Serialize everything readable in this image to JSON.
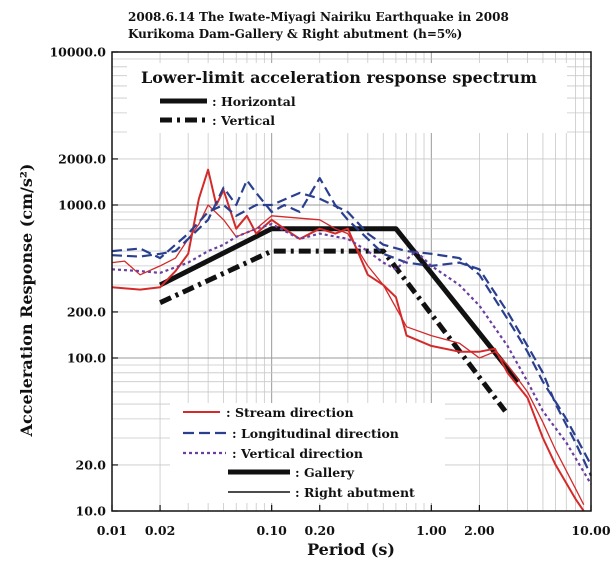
{
  "chart_data": {
    "type": "line",
    "title_line1": "2008.6.14 The Iwate-Miyagi Nairiku Earthquake in 2008",
    "title_line2": "Kurikoma Dam-Gallery & Right abutment (h=5%)",
    "xlabel": "Period (s)",
    "ylabel": "Acceleration Response (cm/s²)",
    "x_scale": "log",
    "y_scale": "log",
    "xlim": [
      0.01,
      10
    ],
    "ylim": [
      10,
      10000
    ],
    "grid": true,
    "x_ticks": [
      {
        "v": 0.01,
        "label": "0.01"
      },
      {
        "v": 0.02,
        "label": "0.02"
      },
      {
        "v": 0.1,
        "label": "0.10"
      },
      {
        "v": 0.2,
        "label": "0.20"
      },
      {
        "v": 1,
        "label": "1.00"
      },
      {
        "v": 2,
        "label": "2.00"
      },
      {
        "v": 10,
        "label": "10.00"
      }
    ],
    "y_ticks": [
      {
        "v": 10,
        "label": "10.0"
      },
      {
        "v": 20,
        "label": "20.0"
      },
      {
        "v": 100,
        "label": "100.0"
      },
      {
        "v": 200,
        "label": "200.0"
      },
      {
        "v": 1000,
        "label": "1000.0"
      },
      {
        "v": 2000,
        "label": "2000.0"
      },
      {
        "v": 10000,
        "label": "10000.0"
      }
    ],
    "legend_top": {
      "heading": "Lower-limit acceleration response spectrum",
      "entries": [
        {
          "label": ": Horizontal",
          "style": "solid-thick"
        },
        {
          "label": ": Vertical",
          "style": "dashed-thick"
        }
      ]
    },
    "legend_bottom": [
      {
        "label": ": Stream direction",
        "color": "#d42a2a",
        "style": "solid"
      },
      {
        "label": ": Longitudinal direction",
        "color": "#2b3f8f",
        "style": "dashed"
      },
      {
        "label": ": Vertical direction",
        "color": "#6b3fa0",
        "style": "dotted"
      },
      {
        "label": ": Gallery",
        "color": "#000000",
        "style": "solid-thick"
      },
      {
        "label": ": Right abutment",
        "color": "#000000",
        "style": "solid-thin"
      }
    ],
    "series": [
      {
        "name": "Horizontal",
        "color": "#111111",
        "style": "solid-thick",
        "points": [
          [
            0.02,
            300
          ],
          [
            0.1,
            700
          ],
          [
            0.6,
            700
          ],
          [
            3.5,
            70
          ]
        ]
      },
      {
        "name": "Vertical",
        "color": "#111111",
        "style": "dashed-thick",
        "points": [
          [
            0.02,
            230
          ],
          [
            0.1,
            500
          ],
          [
            0.5,
            500
          ],
          [
            2.9,
            45
          ]
        ]
      },
      {
        "name": "Stream direction",
        "color": "#d42a2a",
        "style": "solid",
        "points": [
          [
            0.01,
            290
          ],
          [
            0.015,
            280
          ],
          [
            0.02,
            290
          ],
          [
            0.025,
            370
          ],
          [
            0.03,
            480
          ],
          [
            0.035,
            1100
          ],
          [
            0.04,
            1700
          ],
          [
            0.045,
            1000
          ],
          [
            0.05,
            1250
          ],
          [
            0.06,
            700
          ],
          [
            0.07,
            850
          ],
          [
            0.08,
            650
          ],
          [
            0.1,
            800
          ],
          [
            0.12,
            700
          ],
          [
            0.15,
            600
          ],
          [
            0.2,
            700
          ],
          [
            0.25,
            650
          ],
          [
            0.3,
            700
          ],
          [
            0.4,
            350
          ],
          [
            0.5,
            300
          ],
          [
            0.6,
            250
          ],
          [
            0.7,
            140
          ],
          [
            1,
            120
          ],
          [
            1.5,
            110
          ],
          [
            2,
            110
          ],
          [
            2.5,
            115
          ],
          [
            3,
            80
          ],
          [
            4,
            55
          ],
          [
            5,
            30
          ],
          [
            6,
            20
          ],
          [
            8,
            12
          ],
          [
            9,
            10
          ]
        ]
      },
      {
        "name": "Stream direction (Right abutment)",
        "color": "#d42a2a",
        "style": "solid-thin",
        "points": [
          [
            0.01,
            420
          ],
          [
            0.012,
            430
          ],
          [
            0.015,
            350
          ],
          [
            0.02,
            400
          ],
          [
            0.025,
            450
          ],
          [
            0.03,
            600
          ],
          [
            0.035,
            750
          ],
          [
            0.04,
            1000
          ],
          [
            0.05,
            800
          ],
          [
            0.06,
            620
          ],
          [
            0.08,
            700
          ],
          [
            0.1,
            850
          ],
          [
            0.15,
            820
          ],
          [
            0.2,
            800
          ],
          [
            0.25,
            700
          ],
          [
            0.3,
            650
          ],
          [
            0.4,
            400
          ],
          [
            0.5,
            300
          ],
          [
            0.7,
            160
          ],
          [
            1,
            140
          ],
          [
            1.5,
            125
          ],
          [
            2,
            100
          ],
          [
            2.5,
            110
          ],
          [
            3,
            90
          ],
          [
            4,
            60
          ],
          [
            5,
            38
          ],
          [
            6,
            25
          ],
          [
            8,
            14
          ],
          [
            9,
            11
          ]
        ]
      },
      {
        "name": "Longitudinal direction",
        "color": "#2b3f8f",
        "style": "dashed",
        "points": [
          [
            0.01,
            470
          ],
          [
            0.015,
            460
          ],
          [
            0.02,
            480
          ],
          [
            0.025,
            500
          ],
          [
            0.03,
            600
          ],
          [
            0.04,
            800
          ],
          [
            0.05,
            1300
          ],
          [
            0.06,
            1000
          ],
          [
            0.07,
            1450
          ],
          [
            0.08,
            1200
          ],
          [
            0.1,
            900
          ],
          [
            0.12,
            1000
          ],
          [
            0.15,
            900
          ],
          [
            0.2,
            1500
          ],
          [
            0.25,
            1000
          ],
          [
            0.3,
            800
          ],
          [
            0.4,
            600
          ],
          [
            0.5,
            480
          ],
          [
            0.7,
            420
          ],
          [
            1,
            400
          ],
          [
            1.5,
            420
          ],
          [
            2,
            380
          ],
          [
            3,
            200
          ],
          [
            4,
            120
          ],
          [
            5,
            80
          ],
          [
            6,
            50
          ],
          [
            8,
            28
          ],
          [
            10,
            17
          ]
        ]
      },
      {
        "name": "Longitudinal direction (Right abutment)",
        "color": "#2b3f8f",
        "style": "dashed",
        "points": [
          [
            0.01,
            500
          ],
          [
            0.015,
            520
          ],
          [
            0.02,
            450
          ],
          [
            0.03,
            650
          ],
          [
            0.04,
            900
          ],
          [
            0.05,
            1000
          ],
          [
            0.06,
            850
          ],
          [
            0.08,
            1000
          ],
          [
            0.1,
            1000
          ],
          [
            0.15,
            1200
          ],
          [
            0.2,
            1100
          ],
          [
            0.3,
            900
          ],
          [
            0.4,
            650
          ],
          [
            0.5,
            550
          ],
          [
            0.7,
            500
          ],
          [
            1,
            480
          ],
          [
            1.5,
            450
          ],
          [
            2,
            350
          ],
          [
            3,
            180
          ],
          [
            4,
            110
          ],
          [
            5,
            70
          ],
          [
            7,
            40
          ],
          [
            10,
            20
          ]
        ]
      },
      {
        "name": "Vertical direction",
        "color": "#6b3fa0",
        "style": "dotted",
        "points": [
          [
            0.01,
            380
          ],
          [
            0.015,
            370
          ],
          [
            0.02,
            360
          ],
          [
            0.03,
            420
          ],
          [
            0.04,
            500
          ],
          [
            0.05,
            550
          ],
          [
            0.06,
            620
          ],
          [
            0.08,
            700
          ],
          [
            0.1,
            750
          ],
          [
            0.15,
            600
          ],
          [
            0.2,
            650
          ],
          [
            0.3,
            600
          ],
          [
            0.4,
            500
          ],
          [
            0.5,
            420
          ],
          [
            0.6,
            380
          ],
          [
            0.8,
            500
          ],
          [
            1,
            400
          ],
          [
            1.5,
            300
          ],
          [
            2,
            220
          ],
          [
            3,
            120
          ],
          [
            4,
            70
          ],
          [
            5,
            45
          ],
          [
            7,
            28
          ],
          [
            10,
            15
          ]
        ]
      }
    ]
  }
}
